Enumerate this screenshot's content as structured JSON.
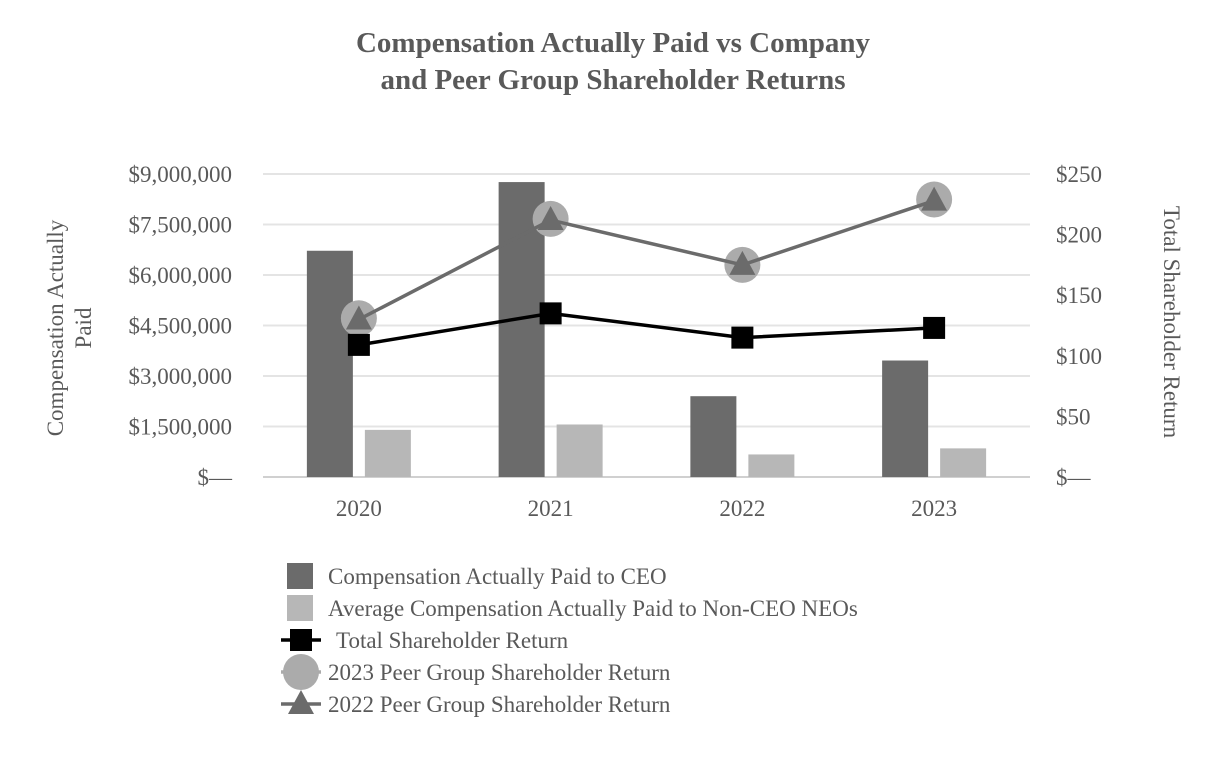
{
  "chart_data": {
    "type": "bar",
    "title_lines": [
      "Compensation Actually Paid vs Company",
      "and Peer Group Shareholder Returns"
    ],
    "categories": [
      "2020",
      "2021",
      "2022",
      "2023"
    ],
    "y_left": {
      "label_lines": [
        "Compensation Actually",
        "Paid"
      ],
      "range": [
        0,
        9000000
      ],
      "ticks": [
        0,
        1500000,
        3000000,
        4500000,
        6000000,
        7500000,
        9000000
      ],
      "tick_labels": [
        "$—",
        "$1,500,000",
        "$3,000,000",
        "$4,500,000",
        "$6,000,000",
        "$7,500,000",
        "$9,000,000"
      ]
    },
    "y_right": {
      "label": "Total Shareholder Return",
      "range": [
        0,
        250
      ],
      "ticks": [
        0,
        50,
        100,
        150,
        200,
        250
      ],
      "tick_labels": [
        "$—",
        "$50",
        "$100",
        "$150",
        "$200",
        "$250"
      ]
    },
    "grid": true,
    "legend_position": "bottom",
    "series": [
      {
        "name": "Compensation Actually Paid to CEO",
        "kind": "bar",
        "axis": "left",
        "color": "#6b6b6b",
        "values": [
          6720000,
          8760000,
          2400000,
          3460000
        ]
      },
      {
        "name": "Average Compensation Actually Paid to Non-CEO NEOs",
        "kind": "bar",
        "axis": "left",
        "color": "#b7b7b7",
        "values": [
          1400000,
          1560000,
          670000,
          850000
        ]
      },
      {
        "name": "Total Shareholder Return",
        "kind": "line",
        "marker": "square",
        "axis": "right",
        "color": "#000000",
        "values": [
          109,
          135,
          115,
          123
        ]
      },
      {
        "name": "2023 Peer Group Shareholder Return",
        "kind": "line",
        "marker": "circle",
        "axis": "right",
        "color": "#ababab",
        "values": [
          131,
          213,
          175,
          229
        ]
      },
      {
        "name": "2022 Peer Group Shareholder Return",
        "kind": "line",
        "marker": "triangle",
        "axis": "right",
        "color": "#6b6b6b",
        "values": [
          130,
          212,
          175,
          228
        ]
      }
    ]
  }
}
